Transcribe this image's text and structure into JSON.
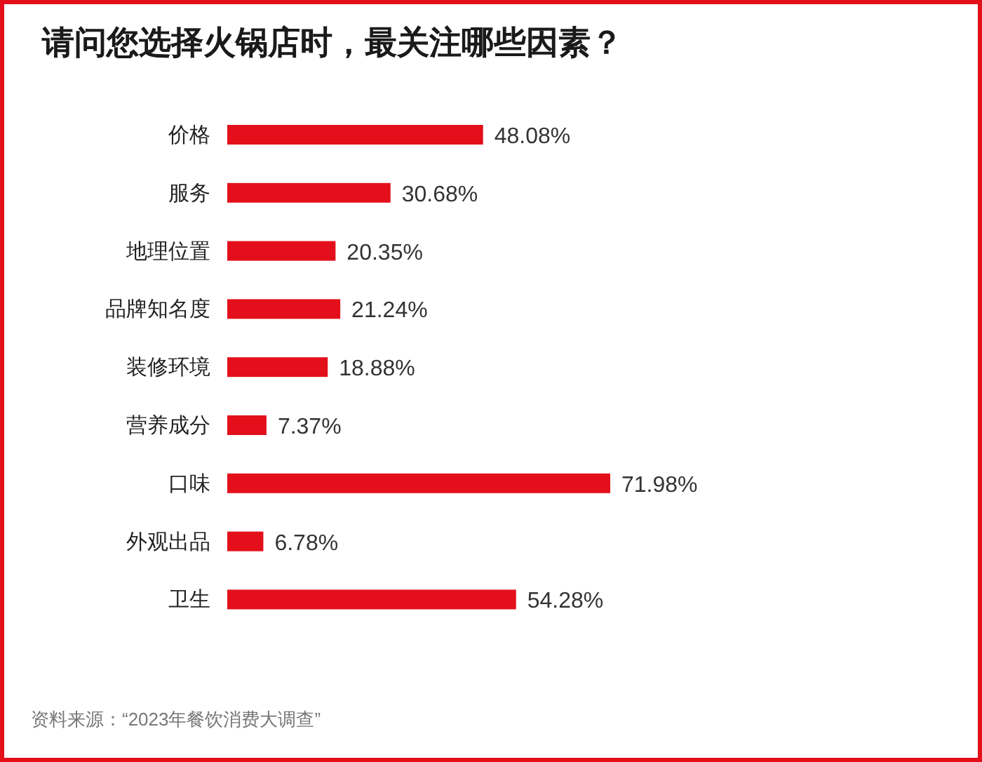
{
  "chart_data": {
    "type": "bar",
    "orientation": "horizontal",
    "title": "请问您选择火锅店时，最关注哪些因素？",
    "categories": [
      "价格",
      "服务",
      "地理位置",
      "品牌知名度",
      "装修环境",
      "营养成分",
      "口味",
      "外观出品",
      "卫生"
    ],
    "values": [
      48.08,
      30.68,
      20.35,
      21.24,
      18.88,
      7.37,
      71.98,
      6.78,
      54.28
    ],
    "value_labels": [
      "48.08%",
      "30.68%",
      "20.35%",
      "21.24%",
      "18.88%",
      "7.37%",
      "71.98%",
      "6.78%",
      "54.28%"
    ],
    "color": "#e3101c",
    "annotations": [
      "资料来源：“2023年餐饮消费大调查”"
    ]
  }
}
